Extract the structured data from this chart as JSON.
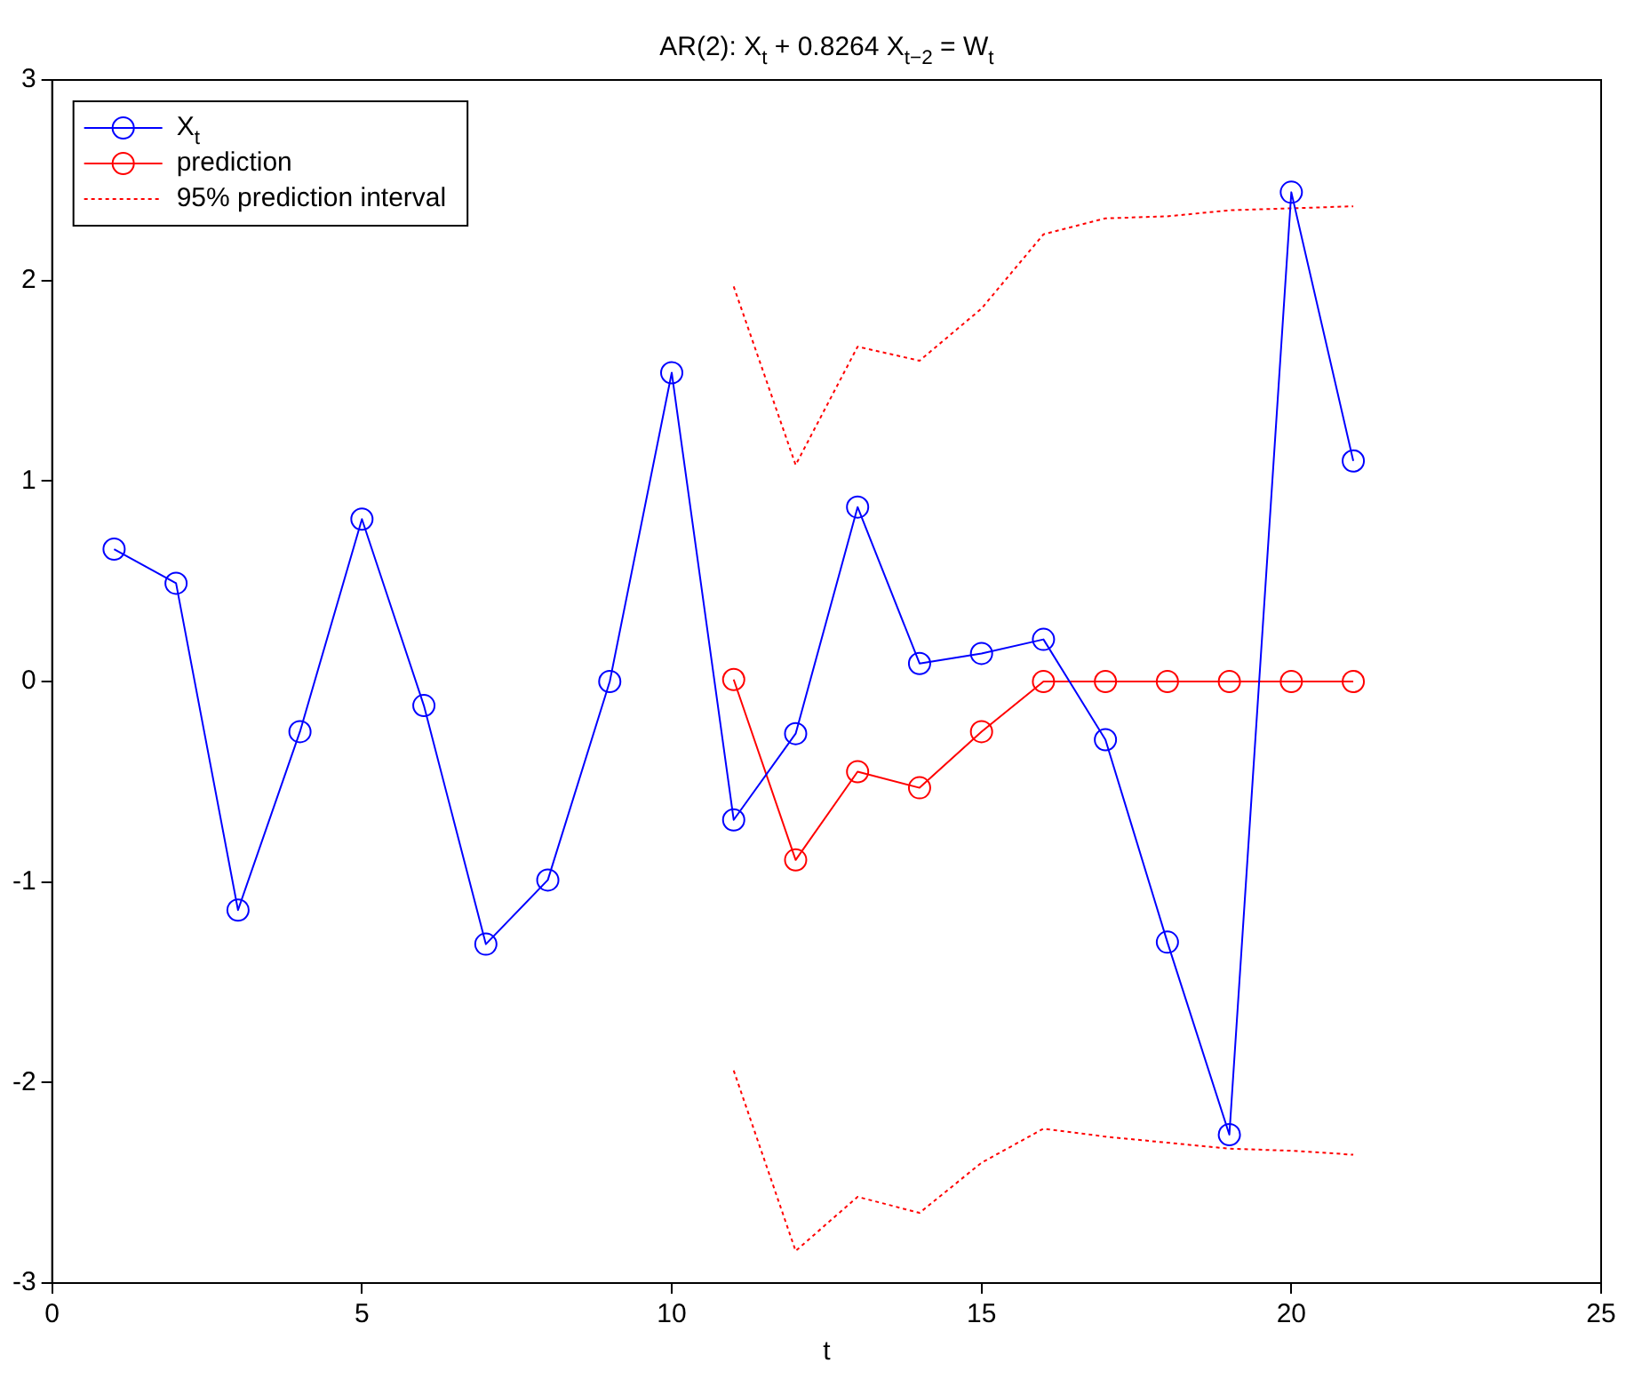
{
  "chart_data": {
    "type": "line",
    "title": "AR(2): X$_{t}$ + 0.8264 X$_{t−2}$ = W$_{t}$",
    "xlabel": "t",
    "xlim": [
      0,
      25
    ],
    "xticks": [
      0,
      5,
      10,
      15,
      20,
      25
    ],
    "ylim": [
      -3,
      3
    ],
    "yticks": [
      -3,
      -2,
      -1,
      0,
      1,
      2,
      3
    ],
    "grid": false,
    "legend": "top left",
    "series": [
      {
        "name": "X$_{t}$",
        "color": "#0000ff",
        "marker": "circle",
        "line_style": "solid",
        "x": [
          1,
          2,
          3,
          4,
          5,
          6,
          7,
          8,
          9,
          10,
          11,
          12,
          13,
          14,
          15,
          16,
          17,
          18,
          19,
          20,
          21
        ],
        "values": [
          0.66,
          0.49,
          -1.14,
          -0.25,
          0.81,
          -0.12,
          -1.31,
          -0.99,
          0.0,
          1.54,
          -0.69,
          -0.26,
          0.87,
          0.09,
          0.14,
          0.21,
          -0.29,
          -1.3,
          -2.26,
          2.44,
          1.1
        ]
      },
      {
        "name": "prediction",
        "color": "#ff0000",
        "marker": "circle",
        "line_style": "solid",
        "x": [
          11,
          12,
          13,
          14,
          15,
          16,
          17,
          18,
          19,
          20,
          21
        ],
        "values": [
          0.01,
          -0.89,
          -0.45,
          -0.53,
          -0.25,
          0,
          0,
          0,
          0,
          0,
          0
        ]
      },
      {
        "name": "95% prediction interval",
        "color": "#ff0000",
        "marker": "none",
        "line_style": "dotted",
        "x": [
          11,
          12,
          13,
          14,
          15,
          16,
          17,
          18,
          19,
          20,
          21
        ],
        "values": [
          1.97,
          1.08,
          1.67,
          1.6,
          1.86,
          2.23,
          2.31,
          2.32,
          2.35,
          2.36,
          2.37
        ]
      },
      {
        "color": "#ff0000",
        "marker": "none",
        "line_style": "dotted",
        "x": [
          11,
          12,
          13,
          14,
          15,
          16,
          17,
          18,
          19,
          20,
          21
        ],
        "values": [
          -1.94,
          -2.84,
          -2.57,
          -2.65,
          -2.4,
          -2.23,
          -2.27,
          -2.3,
          -2.33,
          -2.34,
          -2.36
        ]
      }
    ]
  }
}
